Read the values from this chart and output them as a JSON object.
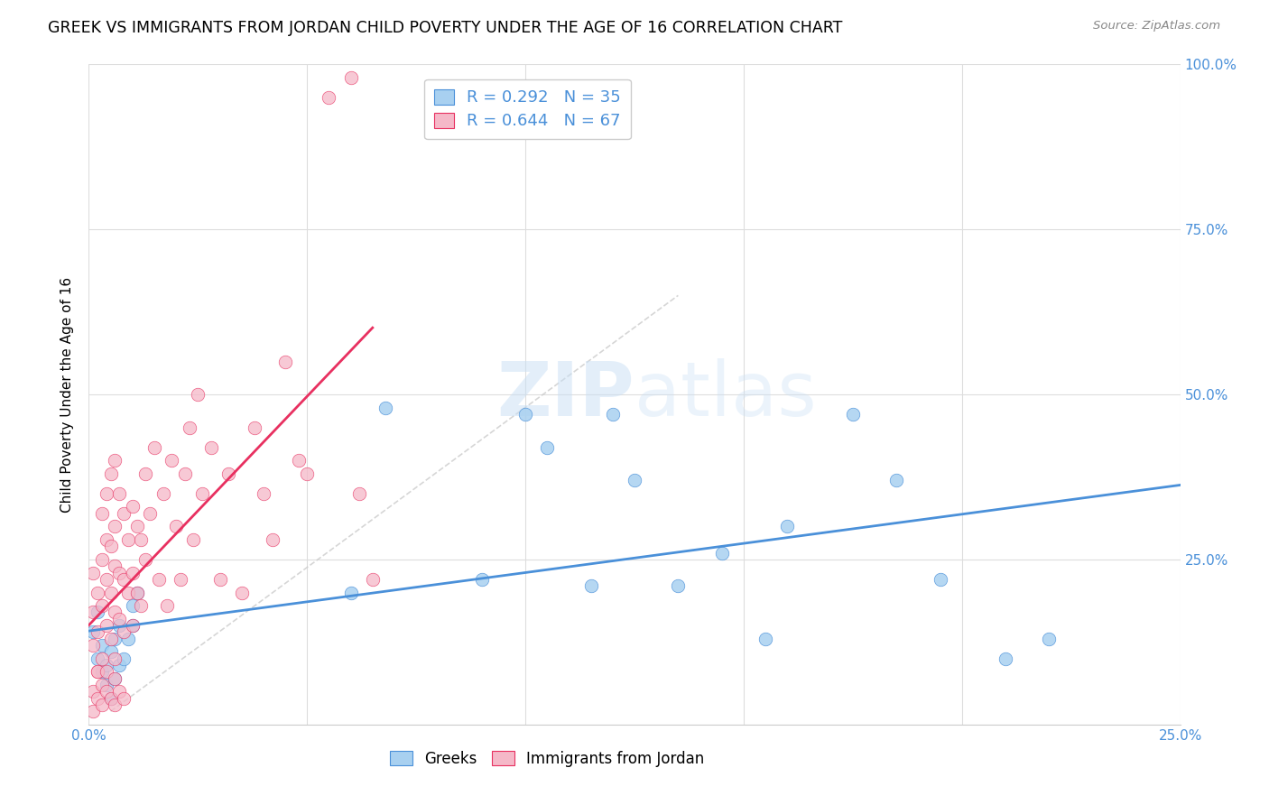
{
  "title": "GREEK VS IMMIGRANTS FROM JORDAN CHILD POVERTY UNDER THE AGE OF 16 CORRELATION CHART",
  "source": "Source: ZipAtlas.com",
  "ylabel": "Child Poverty Under the Age of 16",
  "xlim": [
    0.0,
    0.25
  ],
  "ylim": [
    0.0,
    1.0
  ],
  "xticks": [
    0.0,
    0.05,
    0.1,
    0.15,
    0.2,
    0.25
  ],
  "yticks": [
    0.0,
    0.25,
    0.5,
    0.75,
    1.0
  ],
  "xticklabels": [
    "0.0%",
    "",
    "",
    "",
    "",
    "25.0%"
  ],
  "yticklabels": [
    "",
    "25.0%",
    "50.0%",
    "75.0%",
    "100.0%"
  ],
  "greek_R": 0.292,
  "greek_N": 35,
  "jordan_R": 0.644,
  "jordan_N": 67,
  "greek_color": "#a8d0f0",
  "jordan_color": "#f5b8c8",
  "greek_line_color": "#4a90d9",
  "jordan_line_color": "#e83060",
  "watermark_color": "#c8dff5",
  "title_fontsize": 12.5,
  "label_fontsize": 11,
  "tick_fontsize": 11,
  "greek_x": [
    0.001,
    0.002,
    0.002,
    0.003,
    0.003,
    0.004,
    0.004,
    0.005,
    0.005,
    0.006,
    0.006,
    0.007,
    0.007,
    0.008,
    0.009,
    0.01,
    0.01,
    0.011,
    0.06,
    0.068,
    0.09,
    0.1,
    0.105,
    0.115,
    0.12,
    0.125,
    0.135,
    0.145,
    0.155,
    0.16,
    0.175,
    0.185,
    0.195,
    0.21,
    0.22
  ],
  "greek_y": [
    0.14,
    0.1,
    0.17,
    0.12,
    0.08,
    0.06,
    0.09,
    0.11,
    0.04,
    0.13,
    0.07,
    0.09,
    0.15,
    0.1,
    0.13,
    0.18,
    0.15,
    0.2,
    0.2,
    0.48,
    0.22,
    0.47,
    0.42,
    0.21,
    0.47,
    0.37,
    0.21,
    0.26,
    0.13,
    0.3,
    0.47,
    0.37,
    0.22,
    0.1,
    0.13
  ],
  "jordan_x": [
    0.001,
    0.001,
    0.001,
    0.002,
    0.002,
    0.002,
    0.003,
    0.003,
    0.003,
    0.003,
    0.004,
    0.004,
    0.004,
    0.004,
    0.005,
    0.005,
    0.005,
    0.005,
    0.006,
    0.006,
    0.006,
    0.006,
    0.006,
    0.007,
    0.007,
    0.007,
    0.008,
    0.008,
    0.008,
    0.009,
    0.009,
    0.01,
    0.01,
    0.01,
    0.011,
    0.011,
    0.012,
    0.012,
    0.013,
    0.013,
    0.014,
    0.015,
    0.016,
    0.017,
    0.018,
    0.019,
    0.02,
    0.021,
    0.022,
    0.023,
    0.024,
    0.025,
    0.026,
    0.028,
    0.03,
    0.032,
    0.035,
    0.038,
    0.04,
    0.042,
    0.045,
    0.048,
    0.05,
    0.055,
    0.06,
    0.062,
    0.065
  ],
  "jordan_y": [
    0.12,
    0.17,
    0.23,
    0.08,
    0.14,
    0.2,
    0.1,
    0.18,
    0.25,
    0.32,
    0.15,
    0.22,
    0.28,
    0.35,
    0.13,
    0.2,
    0.27,
    0.38,
    0.1,
    0.17,
    0.24,
    0.3,
    0.4,
    0.16,
    0.23,
    0.35,
    0.14,
    0.22,
    0.32,
    0.2,
    0.28,
    0.15,
    0.23,
    0.33,
    0.2,
    0.3,
    0.18,
    0.28,
    0.25,
    0.38,
    0.32,
    0.42,
    0.22,
    0.35,
    0.18,
    0.4,
    0.3,
    0.22,
    0.38,
    0.45,
    0.28,
    0.5,
    0.35,
    0.42,
    0.22,
    0.38,
    0.2,
    0.45,
    0.35,
    0.28,
    0.55,
    0.4,
    0.38,
    0.95,
    0.98,
    0.35,
    0.22
  ],
  "jordan_cluster_x": [
    0.001,
    0.001,
    0.002,
    0.002,
    0.003,
    0.003,
    0.004,
    0.004,
    0.005,
    0.006,
    0.006,
    0.007,
    0.008
  ],
  "jordan_cluster_y": [
    0.05,
    0.02,
    0.04,
    0.08,
    0.03,
    0.06,
    0.05,
    0.08,
    0.04,
    0.03,
    0.07,
    0.05,
    0.04
  ]
}
